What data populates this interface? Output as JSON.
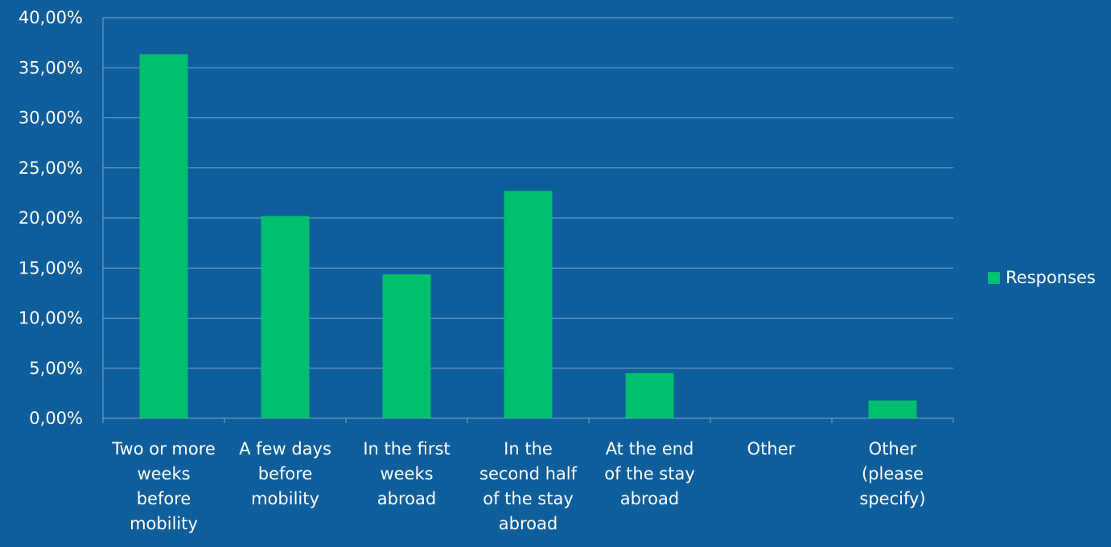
{
  "chart_data": {
    "type": "bar",
    "categories": [
      "Two or more weeks before mobility",
      "A few days before mobility",
      "In the first weeks abroad",
      "In the second half of the stay abroad",
      "At the end of the stay abroad",
      "Other",
      "Other (please specify)"
    ],
    "category_lines": [
      [
        "Two or more",
        "weeks",
        "before",
        "mobility"
      ],
      [
        "A few days",
        "before",
        "mobility"
      ],
      [
        "In the first",
        "weeks",
        "abroad"
      ],
      [
        "In the",
        "second half",
        "of the stay",
        "abroad"
      ],
      [
        "At the end",
        "of the stay",
        "abroad"
      ],
      [
        "Other"
      ],
      [
        "Other",
        "(please",
        "specify)"
      ]
    ],
    "series": [
      {
        "name": "Responses",
        "color": "#00bf6f",
        "values": [
          36.36,
          20.2,
          14.37,
          22.72,
          4.52,
          0,
          1.78
        ]
      }
    ],
    "yticks": [
      "0,00%",
      "5,00%",
      "10,00%",
      "15,00%",
      "20,00%",
      "25,00%",
      "30,00%",
      "35,00%",
      "40,00%"
    ],
    "ylim": [
      0,
      40
    ],
    "grid": true,
    "legend_position": "right",
    "colors": {
      "background": "#0f5e9c",
      "gridline": "#7aa7cb",
      "bar": "#00bf6f",
      "text": "#ffffff"
    }
  },
  "legend": {
    "label": "Responses"
  }
}
